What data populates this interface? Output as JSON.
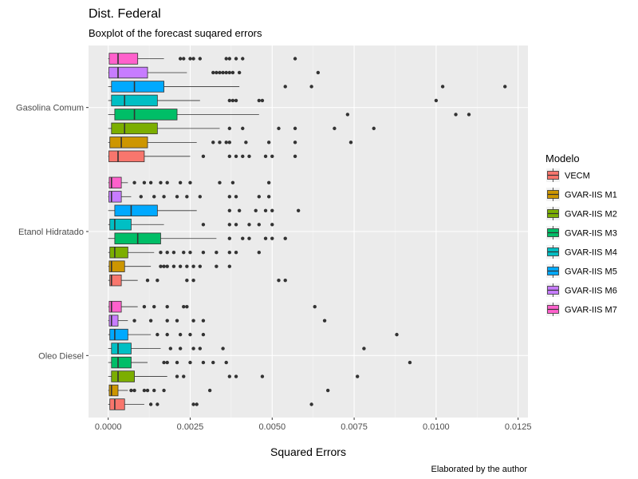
{
  "chart_data": {
    "type": "boxplot",
    "orientation": "horizontal",
    "title": "Dist. Federal",
    "subtitle": "Boxplot of the forecast suqared errors",
    "xlabel": "Squared Errors",
    "caption": "Elaborated by the author",
    "xlim": [
      -0.0006,
      0.0128
    ],
    "x_ticks": [
      0,
      0.0025,
      0.005,
      0.0075,
      0.01,
      0.0125
    ],
    "x_tick_labels": [
      "0.0000",
      "0.0025",
      "0.0050",
      "0.0075",
      "0.0100",
      "0.0125"
    ],
    "categories": [
      "Gasolina Comum",
      "Etanol Hidratado",
      "Oleo Diesel"
    ],
    "legend": {
      "title": "Modelo",
      "position": "right",
      "entries": [
        {
          "name": "VECM",
          "color": "#F8766D"
        },
        {
          "name": "GVAR-IIS M1",
          "color": "#CD9600"
        },
        {
          "name": "GVAR-IIS M2",
          "color": "#7CAE00"
        },
        {
          "name": "GVAR-IIS M3",
          "color": "#00BE67"
        },
        {
          "name": "GVAR-IIS M4",
          "color": "#00BFC4"
        },
        {
          "name": "GVAR-IIS M5",
          "color": "#00A9FF"
        },
        {
          "name": "GVAR-IIS M6",
          "color": "#C77CFF"
        },
        {
          "name": "GVAR-IIS M7",
          "color": "#FF61CC"
        }
      ]
    },
    "series": [
      {
        "category": "Gasolina Comum",
        "model": "VECM",
        "q1": 2e-05,
        "median": 0.0003,
        "q3": 0.0011,
        "whisker_low": 0.0,
        "whisker_high": 0.0025,
        "outliers": [
          0.0029,
          0.0037,
          0.0039,
          0.0041,
          0.0043,
          0.0048,
          0.005,
          0.0057
        ]
      },
      {
        "category": "Gasolina Comum",
        "model": "GVAR-IIS M1",
        "q1": 5e-05,
        "median": 0.0004,
        "q3": 0.0012,
        "whisker_low": 0.0,
        "whisker_high": 0.0027,
        "outliers": [
          0.0032,
          0.0034,
          0.0036,
          0.0037,
          0.0042,
          0.0049,
          0.0057,
          0.0074
        ]
      },
      {
        "category": "Gasolina Comum",
        "model": "GVAR-IIS M2",
        "q1": 0.0001,
        "median": 0.0005,
        "q3": 0.0015,
        "whisker_low": 0.0,
        "whisker_high": 0.0034,
        "outliers": [
          0.0037,
          0.0041,
          0.0052,
          0.0057,
          0.0069,
          0.0081
        ]
      },
      {
        "category": "Gasolina Comum",
        "model": "GVAR-IIS M3",
        "q1": 0.0002,
        "median": 0.0008,
        "q3": 0.0021,
        "whisker_low": 0.0,
        "whisker_high": 0.0046,
        "outliers": [
          0.0073,
          0.0106,
          0.011
        ]
      },
      {
        "category": "Gasolina Comum",
        "model": "GVAR-IIS M4",
        "q1": 0.0001,
        "median": 0.0005,
        "q3": 0.0015,
        "whisker_low": 0.0,
        "whisker_high": 0.0028,
        "outliers": [
          0.0037,
          0.0038,
          0.0039,
          0.0046,
          0.0047,
          0.01
        ]
      },
      {
        "category": "Gasolina Comum",
        "model": "GVAR-IIS M5",
        "q1": 0.0001,
        "median": 0.0008,
        "q3": 0.0017,
        "whisker_low": 0.0,
        "whisker_high": 0.004,
        "outliers": [
          0.0054,
          0.0062,
          0.0102,
          0.0121
        ]
      },
      {
        "category": "Gasolina Comum",
        "model": "GVAR-IIS M6",
        "q1": 2e-05,
        "median": 0.0003,
        "q3": 0.0012,
        "whisker_low": 0.0,
        "whisker_high": 0.0024,
        "outliers": [
          0.0032,
          0.0033,
          0.0034,
          0.0035,
          0.0036,
          0.0037,
          0.0038,
          0.004,
          0.0064
        ]
      },
      {
        "category": "Gasolina Comum",
        "model": "GVAR-IIS M7",
        "q1": 3e-05,
        "median": 0.0003,
        "q3": 0.0009,
        "whisker_low": 0.0,
        "whisker_high": 0.0017,
        "outliers": [
          0.0022,
          0.0023,
          0.0025,
          0.0026,
          0.0028,
          0.0036,
          0.0037,
          0.0039,
          0.0041,
          0.0057
        ]
      },
      {
        "category": "Etanol Hidratado",
        "model": "VECM",
        "q1": 5e-05,
        "median": 0.0001,
        "q3": 0.0004,
        "whisker_low": 0.0,
        "whisker_high": 0.0009,
        "outliers": [
          0.0012,
          0.0015,
          0.0024,
          0.0026,
          0.0052,
          0.0054
        ]
      },
      {
        "category": "Etanol Hidratado",
        "model": "GVAR-IIS M1",
        "q1": 3e-05,
        "median": 0.0001,
        "q3": 0.0005,
        "whisker_low": 0.0,
        "whisker_high": 0.0013,
        "outliers": [
          0.0016,
          0.0017,
          0.0018,
          0.002,
          0.0022,
          0.0024,
          0.0026,
          0.0028,
          0.0033,
          0.0037
        ]
      },
      {
        "category": "Etanol Hidratado",
        "model": "GVAR-IIS M2",
        "q1": 5e-05,
        "median": 0.0002,
        "q3": 0.0006,
        "whisker_low": 0.0,
        "whisker_high": 0.0014,
        "outliers": [
          0.0016,
          0.0018,
          0.002,
          0.0023,
          0.0025,
          0.0029,
          0.0033,
          0.0037,
          0.0039,
          0.0046
        ]
      },
      {
        "category": "Etanol Hidratado",
        "model": "GVAR-IIS M3",
        "q1": 0.0002,
        "median": 0.0009,
        "q3": 0.0016,
        "whisker_low": 0.0,
        "whisker_high": 0.0033,
        "outliers": [
          0.0037,
          0.0041,
          0.0043,
          0.0048,
          0.005,
          0.0054
        ]
      },
      {
        "category": "Etanol Hidratado",
        "model": "GVAR-IIS M4",
        "q1": 5e-05,
        "median": 0.0002,
        "q3": 0.0007,
        "whisker_low": 0.0,
        "whisker_high": 0.0017,
        "outliers": [
          0.0029,
          0.0037,
          0.0039,
          0.0043,
          0.0046,
          0.005
        ]
      },
      {
        "category": "Etanol Hidratado",
        "model": "GVAR-IIS M5",
        "q1": 0.0002,
        "median": 0.0007,
        "q3": 0.0015,
        "whisker_low": 0.0,
        "whisker_high": 0.0027,
        "outliers": [
          0.0037,
          0.004,
          0.0045,
          0.0048,
          0.005,
          0.0058
        ]
      },
      {
        "category": "Etanol Hidratado",
        "model": "GVAR-IIS M6",
        "q1": 2e-05,
        "median": 0.0001,
        "q3": 0.0004,
        "whisker_low": 0.0,
        "whisker_high": 0.0007,
        "outliers": [
          0.001,
          0.0014,
          0.0017,
          0.0021,
          0.0024,
          0.0028,
          0.0037,
          0.0039,
          0.0046,
          0.0049
        ]
      },
      {
        "category": "Etanol Hidratado",
        "model": "GVAR-IIS M7",
        "q1": 3e-05,
        "median": 0.0001,
        "q3": 0.0004,
        "whisker_low": 0.0,
        "whisker_high": 0.0006,
        "outliers": [
          0.0008,
          0.0011,
          0.0013,
          0.0016,
          0.0018,
          0.0022,
          0.0025,
          0.0034,
          0.0038,
          0.0049
        ]
      },
      {
        "category": "Oleo Diesel",
        "model": "VECM",
        "q1": 5e-05,
        "median": 0.0002,
        "q3": 0.0005,
        "whisker_low": 0.0,
        "whisker_high": 0.0011,
        "outliers": [
          0.0013,
          0.0015,
          0.0026,
          0.0027,
          0.0062
        ]
      },
      {
        "category": "Oleo Diesel",
        "model": "GVAR-IIS M1",
        "q1": 3e-05,
        "median": 0.0001,
        "q3": 0.0003,
        "whisker_low": 0.0,
        "whisker_high": 0.0006,
        "outliers": [
          0.0007,
          0.0008,
          0.0011,
          0.0012,
          0.0014,
          0.0017,
          0.0031,
          0.0067
        ]
      },
      {
        "category": "Oleo Diesel",
        "model": "GVAR-IIS M2",
        "q1": 0.0001,
        "median": 0.0003,
        "q3": 0.0008,
        "whisker_low": 0.0,
        "whisker_high": 0.0018,
        "outliers": [
          0.0021,
          0.0023,
          0.0037,
          0.0039,
          0.0047,
          0.0076
        ]
      },
      {
        "category": "Oleo Diesel",
        "model": "GVAR-IIS M3",
        "q1": 0.0001,
        "median": 0.0003,
        "q3": 0.0007,
        "whisker_low": 0.0,
        "whisker_high": 0.0012,
        "outliers": [
          0.0017,
          0.0018,
          0.0021,
          0.0025,
          0.0029,
          0.0032,
          0.0036,
          0.0092
        ]
      },
      {
        "category": "Oleo Diesel",
        "model": "GVAR-IIS M4",
        "q1": 0.0001,
        "median": 0.0003,
        "q3": 0.0007,
        "whisker_low": 0.0,
        "whisker_high": 0.0016,
        "outliers": [
          0.0019,
          0.0022,
          0.0026,
          0.0028,
          0.0035,
          0.0078
        ]
      },
      {
        "category": "Oleo Diesel",
        "model": "GVAR-IIS M5",
        "q1": 5e-05,
        "median": 0.0002,
        "q3": 0.0006,
        "whisker_low": 0.0,
        "whisker_high": 0.0013,
        "outliers": [
          0.0015,
          0.0018,
          0.0022,
          0.0025,
          0.0029,
          0.0088
        ]
      },
      {
        "category": "Oleo Diesel",
        "model": "GVAR-IIS M6",
        "q1": 3e-05,
        "median": 0.0001,
        "q3": 0.0003,
        "whisker_low": 0.0,
        "whisker_high": 0.0006,
        "outliers": [
          0.0008,
          0.0013,
          0.0018,
          0.0021,
          0.0026,
          0.0029,
          0.0066
        ]
      },
      {
        "category": "Oleo Diesel",
        "model": "GVAR-IIS M7",
        "q1": 3e-05,
        "median": 0.0001,
        "q3": 0.0004,
        "whisker_low": 0.0,
        "whisker_high": 0.0009,
        "outliers": [
          0.0011,
          0.0014,
          0.0018,
          0.0023,
          0.0024,
          0.0063
        ]
      }
    ]
  }
}
